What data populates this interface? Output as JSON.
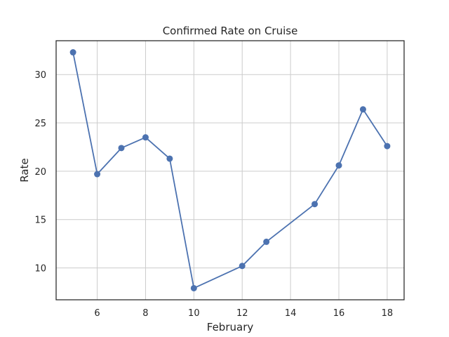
{
  "chart_data": {
    "type": "line",
    "title": "Confirmed Rate on Cruise",
    "xlabel": "February",
    "ylabel": "Rate",
    "x": [
      5,
      6,
      7,
      8,
      9,
      10,
      12,
      13,
      15,
      16,
      17,
      18
    ],
    "series": [
      {
        "values": [
          32.3,
          19.7,
          22.4,
          23.5,
          21.3,
          7.9,
          10.2,
          12.7,
          16.6,
          20.6,
          26.4,
          22.6
        ],
        "color": "#4c72b0",
        "marker": "circle"
      }
    ],
    "xlim": [
      4.3,
      18.7
    ],
    "ylim": [
      6.7,
      33.5
    ],
    "xticks": [
      6,
      8,
      10,
      12,
      14,
      16,
      18
    ],
    "xtick_labels": [
      "6",
      "8",
      "10",
      "12",
      "14",
      "16",
      "18"
    ],
    "yticks": [
      10,
      15,
      20,
      25,
      30
    ],
    "ytick_labels": [
      "10",
      "15",
      "20",
      "25",
      "30"
    ],
    "grid": true,
    "grid_color": "#cccccc",
    "axes_color": "#262626"
  }
}
